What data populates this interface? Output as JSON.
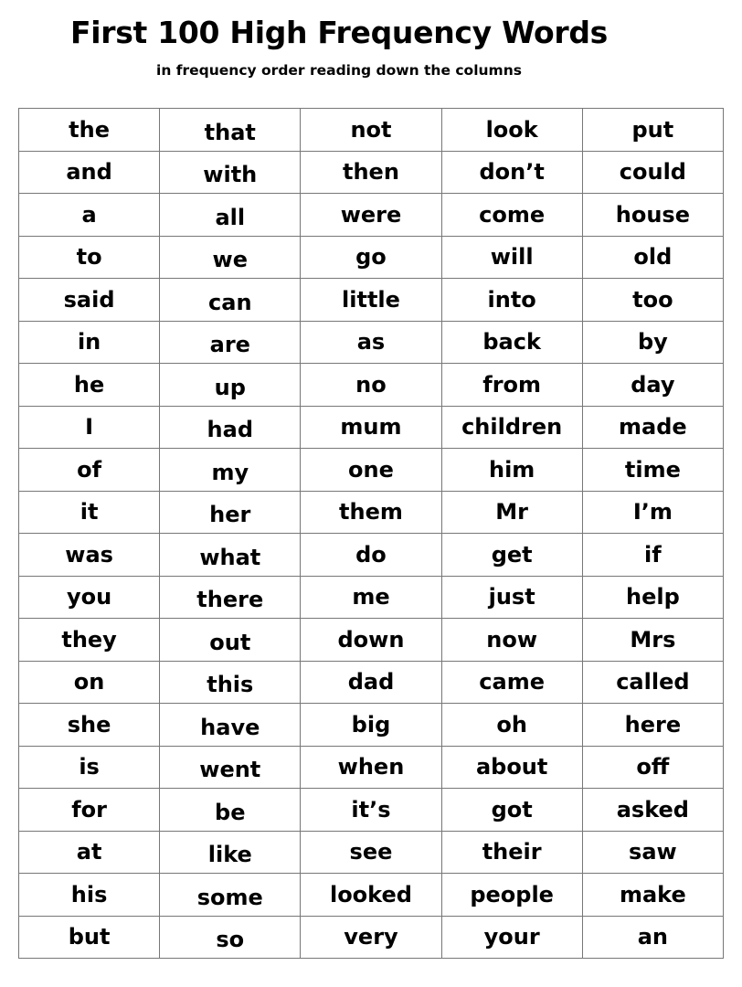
{
  "title": "First 100 High Frequency Words",
  "subtitle": "in frequency order reading down the columns",
  "columns": [
    [
      "the",
      "and",
      "a",
      "to",
      "said",
      "in",
      "he",
      "I",
      "of",
      "it",
      "was",
      "you",
      "they",
      "on",
      "she",
      "is",
      "for",
      "at",
      "his",
      "but"
    ],
    [
      "that",
      "with",
      "all",
      "we",
      "can",
      "are",
      "up",
      "had",
      "my",
      "her",
      "what",
      "there",
      "out",
      "this",
      "have",
      "went",
      "be",
      "like",
      "some",
      "so"
    ],
    [
      "not",
      "then",
      "were",
      "go",
      "little",
      "as",
      "no",
      "mum",
      "one",
      "them",
      "do",
      "me",
      "down",
      "dad",
      "big",
      "when",
      "it’s",
      "see",
      "looked",
      "very"
    ],
    [
      "look",
      "don’t",
      "come",
      "will",
      "into",
      "back",
      "from",
      "children",
      "him",
      "Mr",
      "get",
      "just",
      "now",
      "came",
      "oh",
      "about",
      "got",
      "their",
      "people",
      "your"
    ],
    [
      "put",
      "could",
      "house",
      "old",
      "too",
      "by",
      "day",
      "made",
      "time",
      "I’m",
      "if",
      "help",
      "Mrs",
      "called",
      "here",
      "off",
      "asked",
      "saw",
      "make",
      "an"
    ]
  ]
}
